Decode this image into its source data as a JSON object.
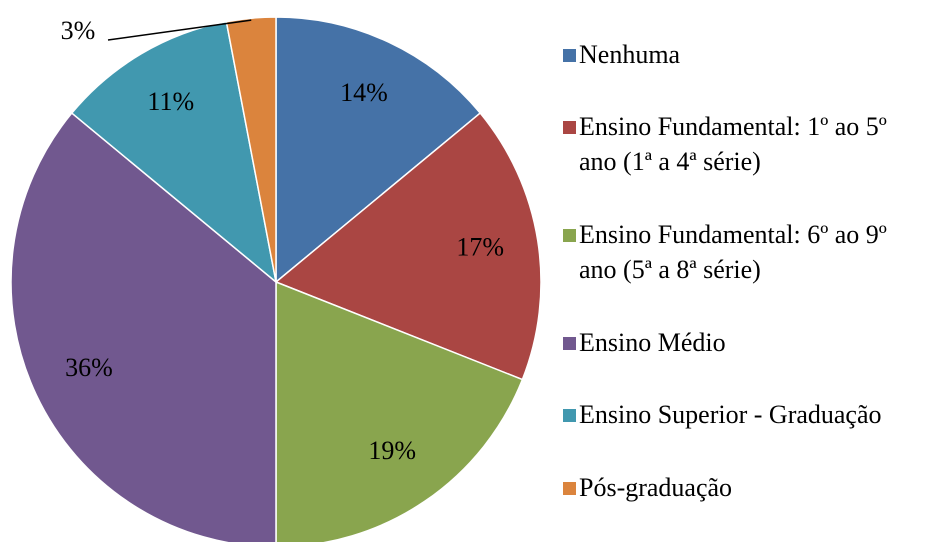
{
  "chart_data": {
    "type": "pie",
    "categories": [
      "Nenhuma",
      "Ensino Fundamental: 1º ao 5º ano (1ª a 4ª série)",
      "Ensino Fundamental: 6º ao 9º ano (5ª a 8ª série)",
      "Ensino Médio",
      "Ensino Superior - Graduação",
      "Pós-graduação"
    ],
    "values": [
      14,
      17,
      19,
      36,
      11,
      3
    ],
    "value_labels": [
      "14%",
      "17%",
      "19%",
      "36%",
      "11%",
      "3%"
    ],
    "colors": [
      "#4572a7",
      "#aa4643",
      "#89a54e",
      "#71588f",
      "#4198af",
      "#db843d"
    ],
    "legend": "right"
  }
}
